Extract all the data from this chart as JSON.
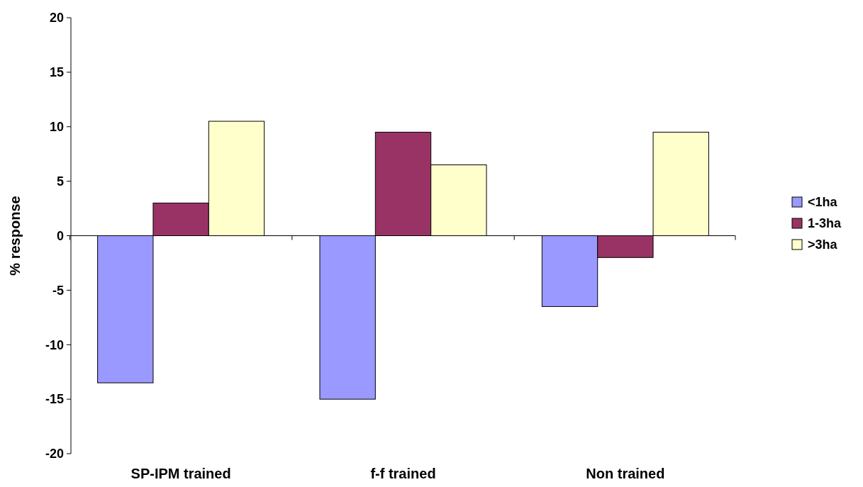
{
  "chart_data": {
    "type": "bar",
    "categories": [
      "SP-IPM trained",
      "f-f trained",
      "Non trained"
    ],
    "series": [
      {
        "name": "<1ha",
        "color": "#9999ff",
        "values": [
          -13.5,
          -15,
          -6.5
        ]
      },
      {
        "name": "1-3ha",
        "color": "#993366",
        "values": [
          3,
          9.5,
          -2
        ]
      },
      {
        "name": ">3ha",
        "color": "#ffffcc",
        "values": [
          10.5,
          6.5,
          9.5
        ]
      }
    ],
    "ylabel": "% response",
    "ylim": [
      -20,
      20
    ],
    "yticks": [
      -20,
      -15,
      -10,
      -5,
      0,
      5,
      10,
      15,
      20
    ],
    "legend": "right"
  }
}
